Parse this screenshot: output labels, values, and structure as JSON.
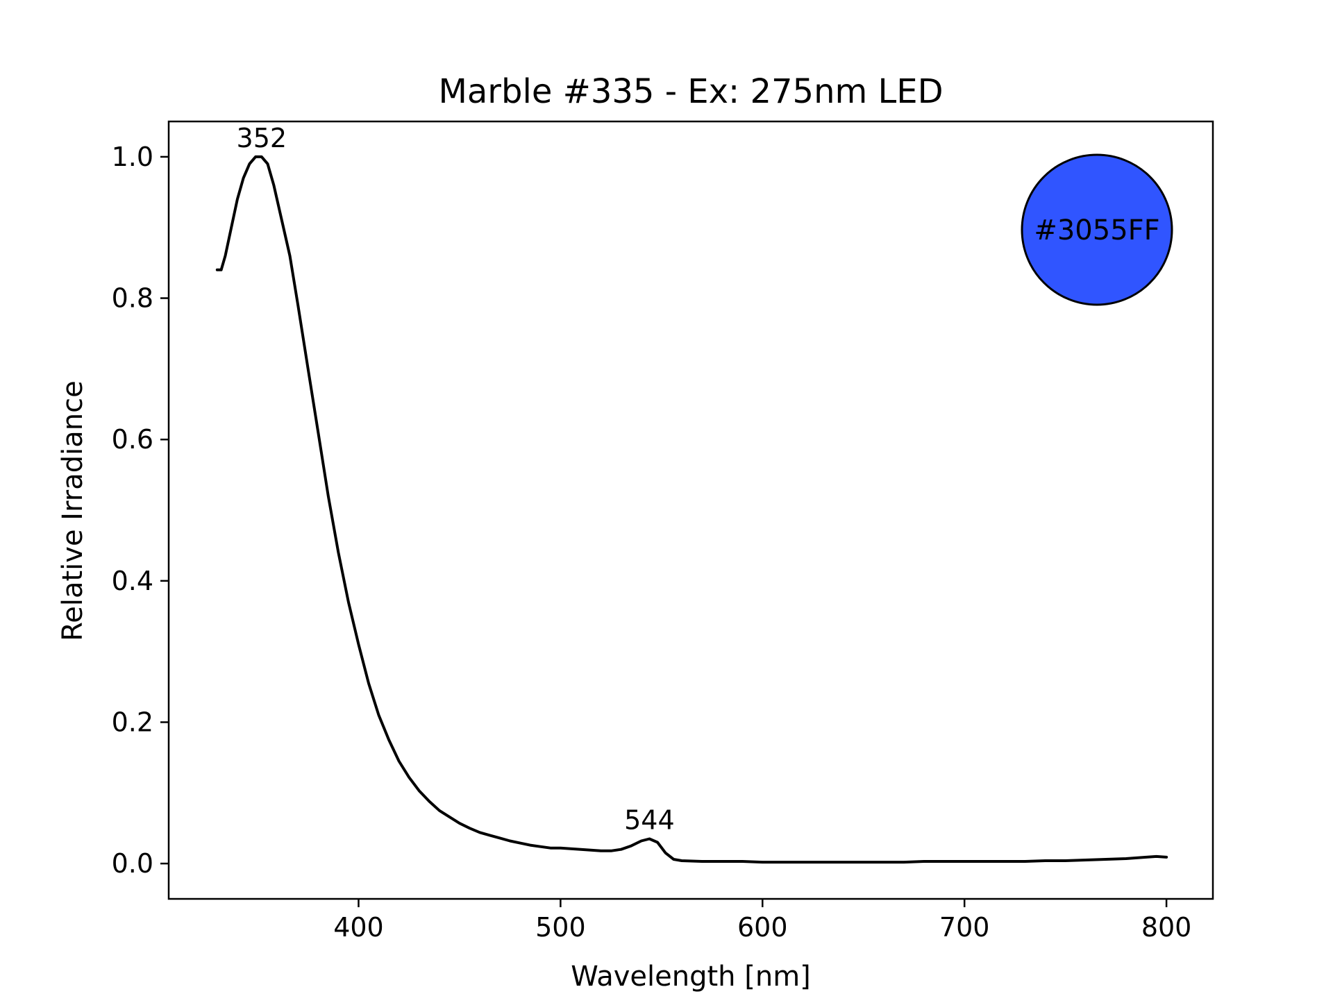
{
  "chart_data": {
    "type": "line",
    "title": "Marble #335 - Ex: 275nm LED",
    "xlabel": "Wavelength [nm]",
    "ylabel": "Relative Irradiance",
    "xlim": [
      306,
      823
    ],
    "ylim": [
      -0.05,
      1.05
    ],
    "xticks": [
      400,
      500,
      600,
      700,
      800
    ],
    "yticks": [
      0.0,
      0.2,
      0.4,
      0.6,
      0.8,
      1.0
    ],
    "xtick_labels": [
      "400",
      "500",
      "600",
      "700",
      "800"
    ],
    "ytick_labels": [
      "0.0",
      "0.2",
      "0.4",
      "0.6",
      "0.8",
      "1.0"
    ],
    "grid": false,
    "line_color": "#000000",
    "series": [
      {
        "x": [
          330,
          332,
          334,
          337,
          340,
          343,
          346,
          349,
          352,
          355,
          358,
          362,
          366,
          370,
          375,
          380,
          385,
          390,
          395,
          400,
          405,
          410,
          415,
          420,
          425,
          430,
          435,
          440,
          445,
          450,
          455,
          460,
          465,
          470,
          475,
          480,
          485,
          490,
          495,
          500,
          505,
          510,
          515,
          520,
          525,
          530,
          535,
          540,
          544,
          548,
          552,
          556,
          560,
          570,
          580,
          590,
          600,
          610,
          620,
          630,
          640,
          650,
          660,
          670,
          680,
          690,
          700,
          710,
          720,
          730,
          740,
          750,
          760,
          770,
          780,
          790,
          795,
          800
        ],
        "y": [
          0.84,
          0.84,
          0.86,
          0.9,
          0.94,
          0.97,
          0.99,
          1.0,
          1.0,
          0.99,
          0.96,
          0.91,
          0.86,
          0.79,
          0.7,
          0.61,
          0.52,
          0.44,
          0.37,
          0.31,
          0.255,
          0.21,
          0.175,
          0.145,
          0.122,
          0.103,
          0.088,
          0.075,
          0.066,
          0.057,
          0.05,
          0.044,
          0.04,
          0.036,
          0.032,
          0.029,
          0.026,
          0.024,
          0.022,
          0.022,
          0.021,
          0.02,
          0.019,
          0.018,
          0.018,
          0.02,
          0.025,
          0.032,
          0.035,
          0.03,
          0.015,
          0.006,
          0.004,
          0.003,
          0.003,
          0.003,
          0.002,
          0.002,
          0.002,
          0.002,
          0.002,
          0.002,
          0.002,
          0.002,
          0.003,
          0.003,
          0.003,
          0.003,
          0.003,
          0.003,
          0.004,
          0.004,
          0.005,
          0.006,
          0.007,
          0.009,
          0.01,
          0.009
        ]
      }
    ],
    "annotations": [
      {
        "text": "352",
        "x": 352,
        "y": 1.0
      },
      {
        "text": "544",
        "x": 544,
        "y": 0.035
      }
    ],
    "color_swatch": {
      "label": "#3055FF",
      "color": "#3055FF",
      "position": "top-right"
    }
  }
}
